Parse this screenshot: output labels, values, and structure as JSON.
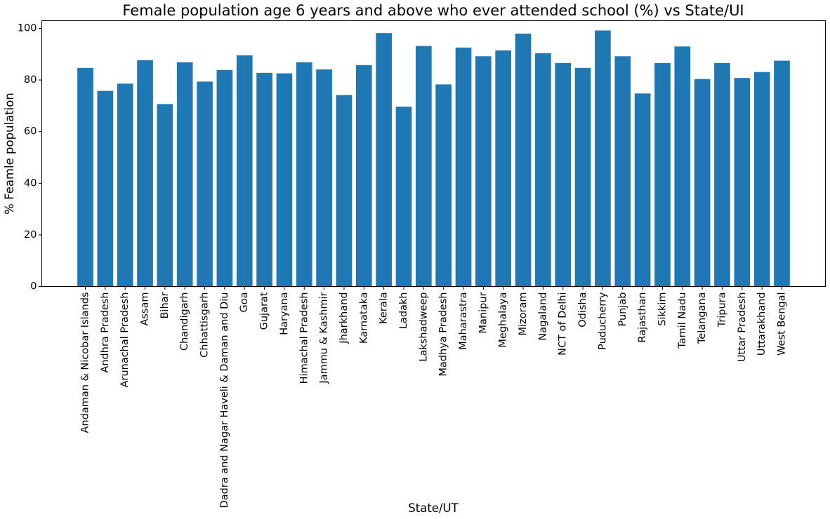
{
  "chart_data": {
    "type": "bar",
    "title": "Female population age 6 years and above who ever attended school (%) vs State/UI",
    "xlabel": "State/UT",
    "ylabel": "% Feamle population",
    "ylim": [
      0,
      103
    ],
    "yticks": [
      0,
      20,
      40,
      60,
      80,
      100
    ],
    "grid": false,
    "bar_color": "#1f77b4",
    "categories": [
      "Andaman & Nicobar Islands",
      "Andhra Pradesh",
      "Arunachal Pradesh",
      "Assam",
      "Bihar",
      "Chandigarh",
      "Chhattisgarh",
      "Dadra and Nagar Haveli & Daman and Diu",
      "Goa",
      "Gujarat",
      "Haryana",
      "Himachal Pradesh",
      "Jammu & Kashmir",
      "Jharkhand",
      "Karnataka",
      "Kerala",
      "Ladakh",
      "Lakshadweep",
      "Madhya Pradesh",
      "Maharastra",
      "Manipur",
      "Meghalaya",
      "Mizoram",
      "Nagaland",
      "NCT of Delhi",
      "Odisha",
      "Puducherry",
      "Punjab",
      "Rajasthan",
      "Sikkim",
      "Tamil Nadu",
      "Telangana",
      "Tripura",
      "Uttar Pradesh",
      "Uttarakhand",
      "West Bengal"
    ],
    "values": [
      84.7,
      75.8,
      78.6,
      87.7,
      70.7,
      86.9,
      79.4,
      83.9,
      89.6,
      82.8,
      82.6,
      86.9,
      84.1,
      74.2,
      85.8,
      98.2,
      69.7,
      93.2,
      78.3,
      92.6,
      89.2,
      91.5,
      98.0,
      90.4,
      86.6,
      84.7,
      99.2,
      89.2,
      74.8,
      86.6,
      93.0,
      80.4,
      86.6,
      80.8,
      83.1,
      87.5
    ]
  }
}
